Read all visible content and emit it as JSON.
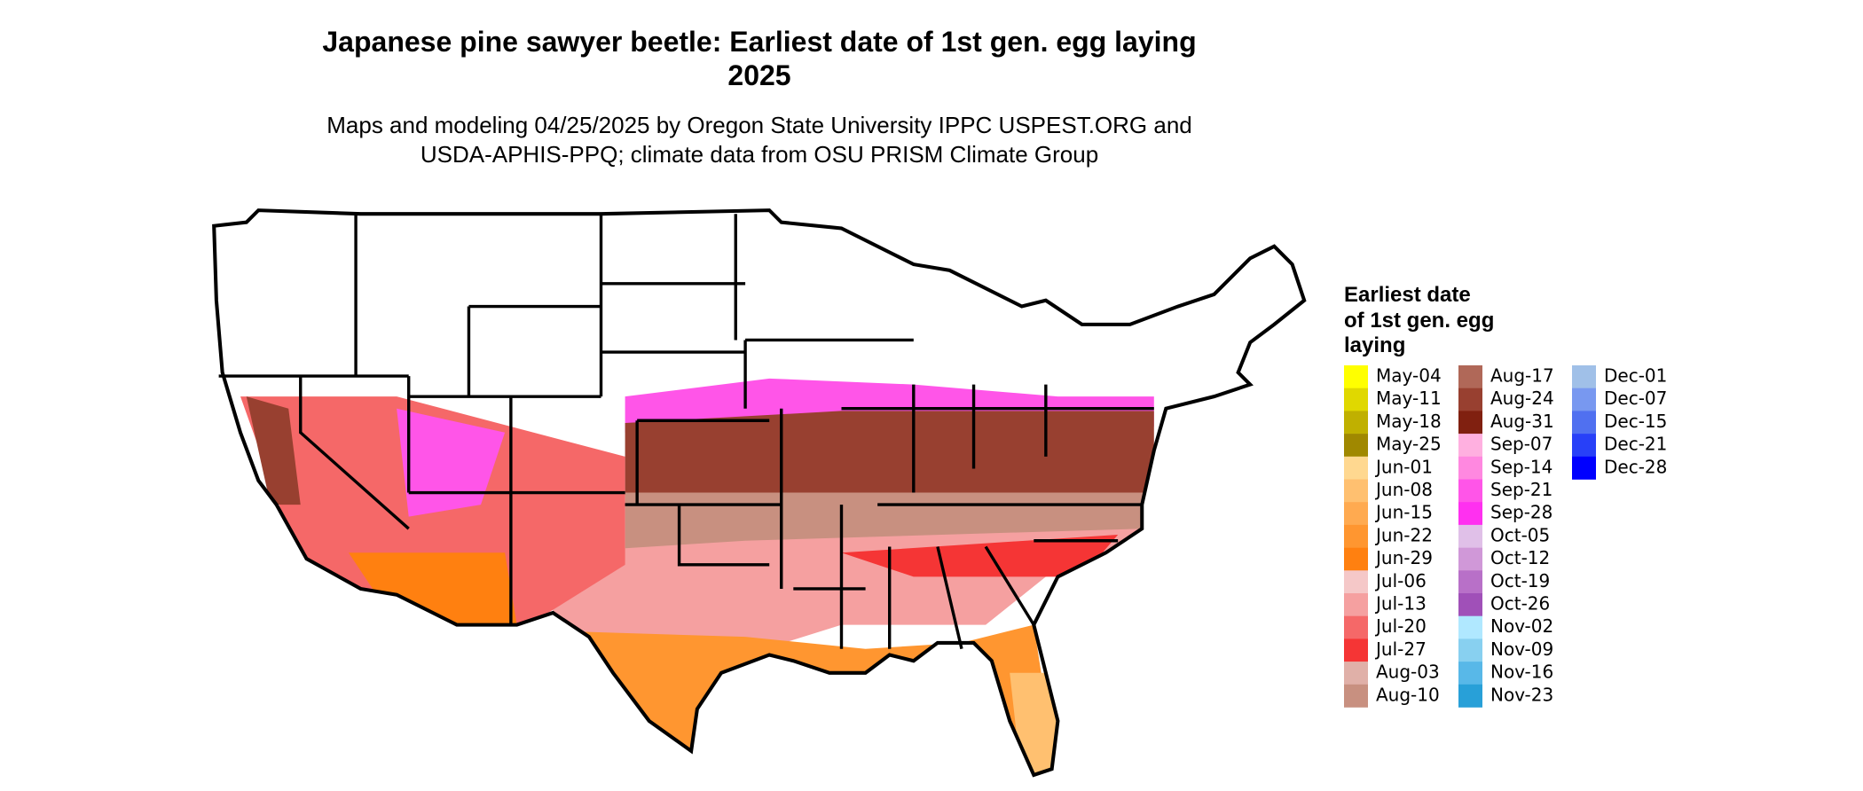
{
  "title": [
    "Japanese pine sawyer beetle: Earliest date of 1st gen. egg laying",
    "2025"
  ],
  "subtitle": [
    "Maps and modeling 04/25/2025 by Oregon State University IPPC USPEST.ORG and",
    "USDA-APHIS-PPQ; climate data from OSU PRISM Climate Group"
  ],
  "legend": {
    "title": [
      "Earliest date",
      "of 1st gen. egg",
      "laying"
    ],
    "items": [
      {
        "label": "May-04",
        "color": "#ffff00"
      },
      {
        "label": "May-11",
        "color": "#e0d800"
      },
      {
        "label": "May-18",
        "color": "#c0b000"
      },
      {
        "label": "May-25",
        "color": "#a08800"
      },
      {
        "label": "Jun-01",
        "color": "#ffd890"
      },
      {
        "label": "Jun-08",
        "color": "#ffc070"
      },
      {
        "label": "Jun-15",
        "color": "#ffaa50"
      },
      {
        "label": "Jun-22",
        "color": "#ff9630"
      },
      {
        "label": "Jun-29",
        "color": "#ff8010"
      },
      {
        "label": "Jul-06",
        "color": "#f5c8c8"
      },
      {
        "label": "Jul-13",
        "color": "#f5a0a0"
      },
      {
        "label": "Jul-20",
        "color": "#f56868"
      },
      {
        "label": "Jul-27",
        "color": "#f53535"
      },
      {
        "label": "Aug-03",
        "color": "#e0b0a8"
      },
      {
        "label": "Aug-10",
        "color": "#c89080"
      },
      {
        "label": "Aug-17",
        "color": "#b06858"
      },
      {
        "label": "Aug-24",
        "color": "#984030"
      },
      {
        "label": "Aug-31",
        "color": "#802010"
      },
      {
        "label": "Sep-07",
        "color": "#ffb0e0"
      },
      {
        "label": "Sep-14",
        "color": "#ff88e0"
      },
      {
        "label": "Sep-21",
        "color": "#ff55e8"
      },
      {
        "label": "Sep-28",
        "color": "#ff30f0"
      },
      {
        "label": "Oct-05",
        "color": "#e0c0e8"
      },
      {
        "label": "Oct-12",
        "color": "#d098d8"
      },
      {
        "label": "Oct-19",
        "color": "#b870c8"
      },
      {
        "label": "Oct-26",
        "color": "#a050b8"
      },
      {
        "label": "Nov-02",
        "color": "#b0e8ff"
      },
      {
        "label": "Nov-09",
        "color": "#88d0f0"
      },
      {
        "label": "Nov-16",
        "color": "#58b8e8"
      },
      {
        "label": "Nov-23",
        "color": "#28a0d8"
      },
      {
        "label": "Dec-01",
        "color": "#a0c0e8"
      },
      {
        "label": "Dec-07",
        "color": "#7898f0"
      },
      {
        "label": "Dec-15",
        "color": "#5070f0"
      },
      {
        "label": "Dec-21",
        "color": "#2840f8"
      },
      {
        "label": "Dec-28",
        "color": "#0000ff"
      }
    ]
  }
}
